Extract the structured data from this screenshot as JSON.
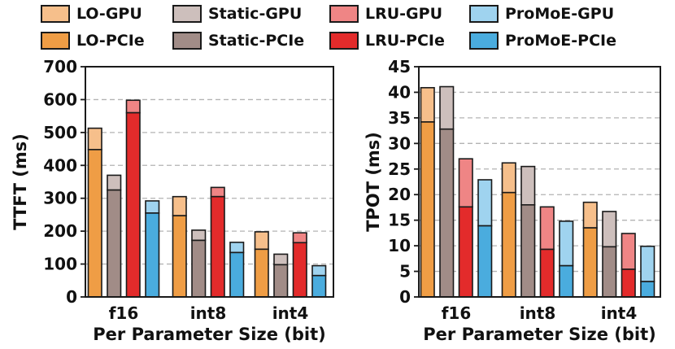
{
  "chart_data": [
    {
      "type": "bar",
      "subtype": "stacked-grouped",
      "title": "",
      "xlabel": "Per Parameter Size (bit)",
      "ylabel": "TTFT (ms)",
      "ylim": [
        0,
        700
      ],
      "yticks": [
        0,
        100,
        200,
        300,
        400,
        500,
        600,
        700
      ],
      "grid": true,
      "categories": [
        "f16",
        "int8",
        "int4"
      ],
      "methods": [
        {
          "name": "LO",
          "pcie": [
            448,
            247,
            145
          ],
          "total": [
            513,
            305,
            198
          ]
        },
        {
          "name": "Static",
          "pcie": [
            325,
            172,
            98
          ],
          "total": [
            370,
            203,
            130
          ]
        },
        {
          "name": "LRU",
          "pcie": [
            560,
            305,
            165
          ],
          "total": [
            598,
            333,
            195
          ]
        },
        {
          "name": "ProMoE",
          "pcie": [
            255,
            135,
            65
          ],
          "total": [
            292,
            166,
            95
          ]
        }
      ]
    },
    {
      "type": "bar",
      "subtype": "stacked-grouped",
      "title": "",
      "xlabel": "Per Parameter Size (bit)",
      "ylabel": "TPOT (ms)",
      "ylim": [
        0,
        45
      ],
      "yticks": [
        0,
        5,
        10,
        15,
        20,
        25,
        30,
        35,
        40,
        45
      ],
      "grid": true,
      "categories": [
        "f16",
        "int8",
        "int4"
      ],
      "methods": [
        {
          "name": "LO",
          "pcie": [
            34.2,
            20.4,
            13.5
          ],
          "total": [
            40.9,
            26.2,
            18.5
          ]
        },
        {
          "name": "Static",
          "pcie": [
            32.8,
            18.0,
            9.8
          ],
          "total": [
            41.1,
            25.5,
            16.7
          ]
        },
        {
          "name": "LRU",
          "pcie": [
            17.6,
            9.3,
            5.4
          ],
          "total": [
            27.0,
            17.6,
            12.4
          ]
        },
        {
          "name": "ProMoE",
          "pcie": [
            13.9,
            6.1,
            3.0
          ],
          "total": [
            22.9,
            14.8,
            9.9
          ]
        }
      ]
    }
  ],
  "legend": [
    {
      "label": "LO-GPU",
      "color": "#f6bf8b"
    },
    {
      "label": "Static-GPU",
      "color": "#cdbfbc"
    },
    {
      "label": "LRU-GPU",
      "color": "#ef8585"
    },
    {
      "label": "ProMoE-GPU",
      "color": "#9fd3ef"
    },
    {
      "label": "LO-PCIe",
      "color": "#ef9d45"
    },
    {
      "label": "Static-PCIe",
      "color": "#a18c87"
    },
    {
      "label": "LRU-PCIe",
      "color": "#e32b2b"
    },
    {
      "label": "ProMoE-PCIe",
      "color": "#4aacde"
    }
  ],
  "colors": {
    "LO": {
      "gpu": "#f6bf8b",
      "pcie": "#ef9d45"
    },
    "Static": {
      "gpu": "#cdbfbc",
      "pcie": "#a18c87"
    },
    "LRU": {
      "gpu": "#ef8585",
      "pcie": "#e32b2b"
    },
    "ProMoE": {
      "gpu": "#9fd3ef",
      "pcie": "#4aacde"
    }
  }
}
